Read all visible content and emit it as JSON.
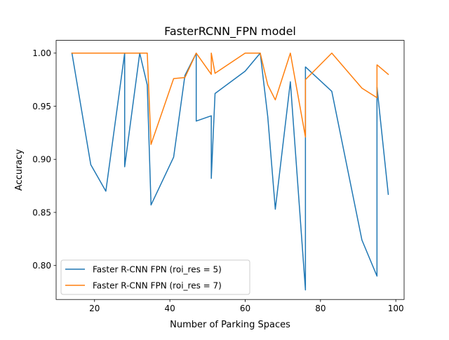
{
  "chart_data": {
    "type": "line",
    "title": "FasterRCNN_FPN model",
    "xlabel": "Number of Parking Spaces",
    "ylabel": "Accuracy",
    "xlim": [
      9.8,
      102.2
    ],
    "ylim": [
      0.768,
      1.012
    ],
    "xticks": [
      20,
      40,
      60,
      80,
      100
    ],
    "xtick_labels": [
      "20",
      "40",
      "60",
      "80",
      "100"
    ],
    "yticks": [
      0.8,
      0.85,
      0.9,
      0.95,
      1.0
    ],
    "ytick_labels": [
      "0.80",
      "0.85",
      "0.90",
      "0.95",
      "1.00"
    ],
    "grid": false,
    "legend_position": "lower-left",
    "series": [
      {
        "name": "Faster R-CNN FPN (roi_res = 5)",
        "color": "#1f77b4",
        "points": [
          [
            14,
            1.0
          ],
          [
            19,
            0.895
          ],
          [
            23,
            0.87
          ],
          [
            28,
            1.0
          ],
          [
            28,
            0.893
          ],
          [
            32,
            1.0
          ],
          [
            34,
            0.97
          ],
          [
            35,
            0.857
          ],
          [
            41,
            0.902
          ],
          [
            44,
            0.979
          ],
          [
            47,
            1.0
          ],
          [
            47,
            0.936
          ],
          [
            51,
            0.941
          ],
          [
            51,
            0.882
          ],
          [
            52,
            0.962
          ],
          [
            60,
            0.983
          ],
          [
            64,
            1.0
          ],
          [
            66,
            0.94
          ],
          [
            68,
            0.853
          ],
          [
            72,
            0.973
          ],
          [
            76,
            0.777
          ],
          [
            76,
            0.987
          ],
          [
            83,
            0.964
          ],
          [
            91,
            0.824
          ],
          [
            95,
            0.79
          ],
          [
            95,
            0.968
          ],
          [
            98,
            0.867
          ]
        ]
      },
      {
        "name": "Faster R-CNN FPN (roi_res = 7)",
        "color": "#ff7f0e",
        "points": [
          [
            14,
            1.0
          ],
          [
            28,
            1.0
          ],
          [
            34,
            1.0
          ],
          [
            35,
            0.914
          ],
          [
            41,
            0.976
          ],
          [
            44,
            0.977
          ],
          [
            47,
            1.0
          ],
          [
            51,
            0.98
          ],
          [
            51,
            1.0
          ],
          [
            52,
            0.981
          ],
          [
            60,
            1.0
          ],
          [
            64,
            1.0
          ],
          [
            66,
            0.97
          ],
          [
            68,
            0.956
          ],
          [
            72,
            1.0
          ],
          [
            76,
            0.921
          ],
          [
            76,
            0.975
          ],
          [
            83,
            1.0
          ],
          [
            91,
            0.967
          ],
          [
            95,
            0.958
          ],
          [
            95,
            0.989
          ],
          [
            98,
            0.98
          ]
        ]
      }
    ]
  }
}
